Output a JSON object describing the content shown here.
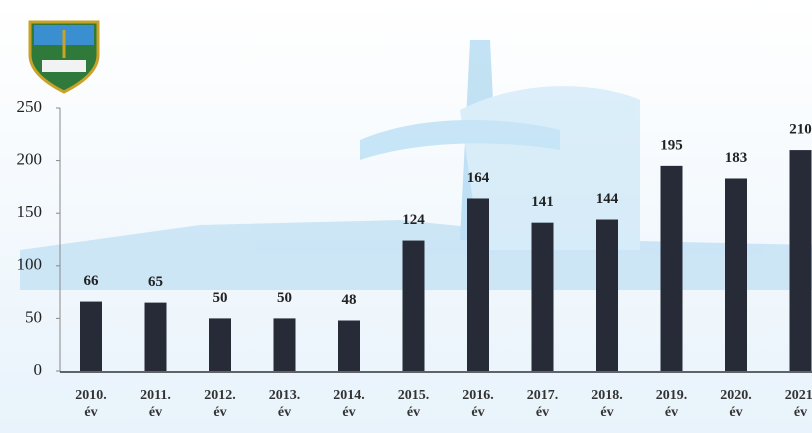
{
  "chart_data": {
    "type": "bar",
    "categories": [
      "2010. év",
      "2011. év",
      "2012. év",
      "2013. év",
      "2014. év",
      "2015. év",
      "2016. év",
      "2017. év",
      "2018. év",
      "2019. év",
      "2020. év",
      "2021. év"
    ],
    "values": [
      66,
      65,
      50,
      50,
      48,
      124,
      164,
      141,
      144,
      195,
      183,
      210
    ],
    "color": "#272b38",
    "ylim": [
      0,
      250
    ],
    "yticks": [
      0,
      50,
      100,
      150,
      200,
      250
    ],
    "grid": false
  }
}
